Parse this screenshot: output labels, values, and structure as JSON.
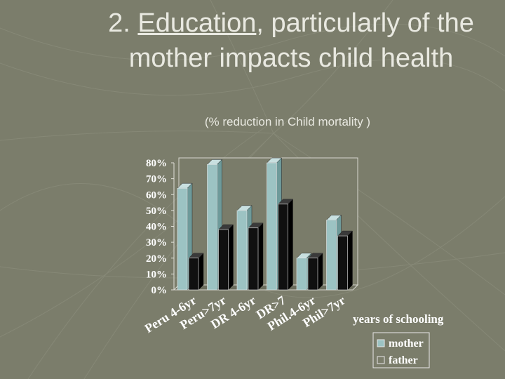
{
  "slide": {
    "title_prefix": "2. ",
    "title_underlined": "Education",
    "title_rest": ", particularly of the mother impacts child health",
    "subtitle": "(% reduction in Child mortality )"
  },
  "colors": {
    "mother": "#9cc3c3",
    "father": "#101010",
    "plot_bg": "#7a7c6a"
  },
  "chart_data": {
    "type": "bar",
    "title": "",
    "xlabel": "years of schooling",
    "ylabel": "",
    "ylim": [
      0,
      80
    ],
    "yticks": [
      "0%",
      "10%",
      "20%",
      "30%",
      "40%",
      "50%",
      "60%",
      "70%",
      "80%"
    ],
    "categories": [
      "Peru 4-6yr",
      "Peru>7yr",
      "DR 4-6yr",
      "DR>7",
      "Phil.4-6yr",
      "Phil>7yr"
    ],
    "series": [
      {
        "name": "mother",
        "values": [
          64,
          79,
          50,
          80,
          20,
          44
        ]
      },
      {
        "name": "father",
        "values": [
          20,
          38,
          39,
          54,
          20,
          34
        ]
      }
    ],
    "legend": "bottom-right",
    "grid": false
  }
}
